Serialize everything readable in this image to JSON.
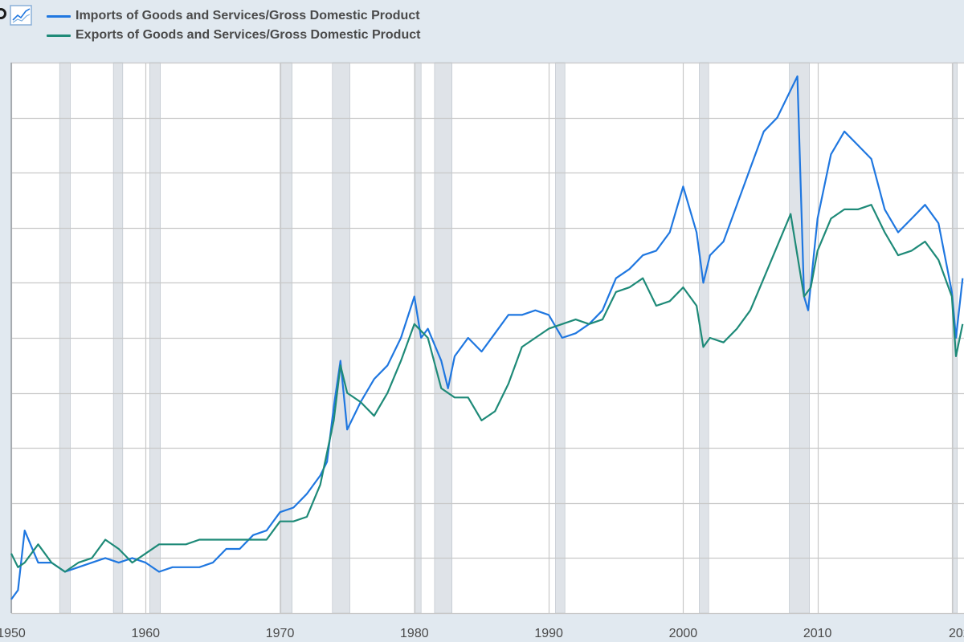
{
  "legend": {
    "items": [
      {
        "label": "Imports of Goods and Services/Gross Domestic Product",
        "color": "#1f77e0"
      },
      {
        "label": "Exports of Goods and Services/Gross Domestic Product",
        "color": "#1e8a78"
      }
    ]
  },
  "icons": {
    "logo": "fred-logo-icon",
    "chart": "line-chart-icon"
  },
  "colors": {
    "recession": "#dfe3e8",
    "grid": "#c8c8c8",
    "background": "#ffffff",
    "page": "#e1e9f0"
  },
  "chart_data": {
    "type": "line",
    "title": "",
    "xlabel": "",
    "ylabel": "",
    "xlim": [
      1949.85,
      1951.0
    ],
    "x_tick_labels": [
      "1950",
      "1960",
      "1970",
      "1980",
      "1990",
      "2000",
      "2010",
      "202"
    ],
    "grid": true,
    "legend_position": "top-left",
    "recessions": [
      [
        1953.6,
        1954.4
      ],
      [
        1957.6,
        1958.3
      ],
      [
        1960.3,
        1961.1
      ],
      [
        1970.0,
        1970.9
      ],
      [
        1973.9,
        1975.2
      ],
      [
        1980.0,
        1980.5
      ],
      [
        1981.5,
        1982.8
      ],
      [
        1990.5,
        1991.2
      ],
      [
        2001.2,
        2001.9
      ],
      [
        2007.9,
        2009.4
      ],
      [
        2020.1,
        2020.4
      ]
    ],
    "series": [
      {
        "name": "Imports of Goods and Services/Gross Domestic Product",
        "color": "#1f77e0",
        "points": [
          [
            1950.0,
            0.3
          ],
          [
            1950.5,
            0.5
          ],
          [
            1951.0,
            1.8
          ],
          [
            1952.0,
            1.1
          ],
          [
            1953.0,
            1.1
          ],
          [
            1954.0,
            0.9
          ],
          [
            1955.0,
            1.0
          ],
          [
            1956.0,
            1.1
          ],
          [
            1957.0,
            1.2
          ],
          [
            1958.0,
            1.1
          ],
          [
            1959.0,
            1.2
          ],
          [
            1960.0,
            1.1
          ],
          [
            1961.0,
            0.9
          ],
          [
            1962.0,
            1.0
          ],
          [
            1963.0,
            1.0
          ],
          [
            1964.0,
            1.0
          ],
          [
            1965.0,
            1.1
          ],
          [
            1966.0,
            1.4
          ],
          [
            1967.0,
            1.4
          ],
          [
            1968.0,
            1.7
          ],
          [
            1969.0,
            1.8
          ],
          [
            1970.0,
            2.2
          ],
          [
            1971.0,
            2.3
          ],
          [
            1972.0,
            2.6
          ],
          [
            1973.0,
            3.0
          ],
          [
            1973.5,
            3.3
          ],
          [
            1974.0,
            4.5
          ],
          [
            1974.5,
            5.5
          ],
          [
            1975.0,
            4.0
          ],
          [
            1976.0,
            4.6
          ],
          [
            1977.0,
            5.1
          ],
          [
            1978.0,
            5.4
          ],
          [
            1979.0,
            6.0
          ],
          [
            1980.0,
            6.9
          ],
          [
            1980.5,
            6.0
          ],
          [
            1981.0,
            6.2
          ],
          [
            1982.0,
            5.5
          ],
          [
            1982.5,
            4.9
          ],
          [
            1983.0,
            5.6
          ],
          [
            1984.0,
            6.0
          ],
          [
            1985.0,
            5.7
          ],
          [
            1986.0,
            6.1
          ],
          [
            1987.0,
            6.5
          ],
          [
            1988.0,
            6.5
          ],
          [
            1989.0,
            6.6
          ],
          [
            1990.0,
            6.5
          ],
          [
            1991.0,
            6.0
          ],
          [
            1992.0,
            6.1
          ],
          [
            1993.0,
            6.3
          ],
          [
            1994.0,
            6.6
          ],
          [
            1995.0,
            7.3
          ],
          [
            1996.0,
            7.5
          ],
          [
            1997.0,
            7.8
          ],
          [
            1998.0,
            7.9
          ],
          [
            1999.0,
            8.3
          ],
          [
            2000.0,
            9.3
          ],
          [
            2001.0,
            8.3
          ],
          [
            2001.5,
            7.2
          ],
          [
            2002.0,
            7.8
          ],
          [
            2003.0,
            8.1
          ],
          [
            2004.0,
            8.9
          ],
          [
            2005.0,
            9.7
          ],
          [
            2006.0,
            10.5
          ],
          [
            2007.0,
            10.8
          ],
          [
            2008.0,
            11.4
          ],
          [
            2008.5,
            11.7
          ],
          [
            2009.0,
            6.9
          ],
          [
            2009.3,
            6.6
          ],
          [
            2010.0,
            8.6
          ],
          [
            2011.0,
            10.0
          ],
          [
            2012.0,
            10.5
          ],
          [
            2013.0,
            10.2
          ],
          [
            2014.0,
            9.9
          ],
          [
            2015.0,
            8.8
          ],
          [
            2016.0,
            8.3
          ],
          [
            2017.0,
            8.6
          ],
          [
            2018.0,
            8.9
          ],
          [
            2019.0,
            8.5
          ],
          [
            2020.0,
            7.0
          ],
          [
            2020.3,
            6.0
          ],
          [
            2020.8,
            7.3
          ]
        ]
      },
      {
        "name": "Exports of Goods and Services/Gross Domestic Product",
        "color": "#1e8a78",
        "points": [
          [
            1950.0,
            1.3
          ],
          [
            1950.5,
            1.0
          ],
          [
            1951.0,
            1.1
          ],
          [
            1952.0,
            1.5
          ],
          [
            1953.0,
            1.1
          ],
          [
            1954.0,
            0.9
          ],
          [
            1955.0,
            1.1
          ],
          [
            1956.0,
            1.2
          ],
          [
            1957.0,
            1.6
          ],
          [
            1958.0,
            1.4
          ],
          [
            1959.0,
            1.1
          ],
          [
            1960.0,
            1.3
          ],
          [
            1961.0,
            1.5
          ],
          [
            1962.0,
            1.5
          ],
          [
            1963.0,
            1.5
          ],
          [
            1964.0,
            1.6
          ],
          [
            1965.0,
            1.6
          ],
          [
            1966.0,
            1.6
          ],
          [
            1967.0,
            1.6
          ],
          [
            1968.0,
            1.6
          ],
          [
            1969.0,
            1.6
          ],
          [
            1970.0,
            2.0
          ],
          [
            1971.0,
            2.0
          ],
          [
            1972.0,
            2.1
          ],
          [
            1973.0,
            2.8
          ],
          [
            1974.0,
            4.2
          ],
          [
            1974.5,
            5.4
          ],
          [
            1975.0,
            4.8
          ],
          [
            1976.0,
            4.6
          ],
          [
            1977.0,
            4.3
          ],
          [
            1978.0,
            4.8
          ],
          [
            1979.0,
            5.5
          ],
          [
            1980.0,
            6.3
          ],
          [
            1981.0,
            6.0
          ],
          [
            1982.0,
            4.9
          ],
          [
            1983.0,
            4.7
          ],
          [
            1984.0,
            4.7
          ],
          [
            1985.0,
            4.2
          ],
          [
            1986.0,
            4.4
          ],
          [
            1987.0,
            5.0
          ],
          [
            1988.0,
            5.8
          ],
          [
            1989.0,
            6.0
          ],
          [
            1990.0,
            6.2
          ],
          [
            1991.0,
            6.3
          ],
          [
            1992.0,
            6.4
          ],
          [
            1993.0,
            6.3
          ],
          [
            1994.0,
            6.4
          ],
          [
            1995.0,
            7.0
          ],
          [
            1996.0,
            7.1
          ],
          [
            1997.0,
            7.3
          ],
          [
            1998.0,
            6.7
          ],
          [
            1999.0,
            6.8
          ],
          [
            2000.0,
            7.1
          ],
          [
            2001.0,
            6.7
          ],
          [
            2001.5,
            5.8
          ],
          [
            2002.0,
            6.0
          ],
          [
            2003.0,
            5.9
          ],
          [
            2004.0,
            6.2
          ],
          [
            2005.0,
            6.6
          ],
          [
            2006.0,
            7.3
          ],
          [
            2007.0,
            8.0
          ],
          [
            2008.0,
            8.7
          ],
          [
            2009.0,
            6.9
          ],
          [
            2009.5,
            7.1
          ],
          [
            2010.0,
            7.9
          ],
          [
            2011.0,
            8.6
          ],
          [
            2012.0,
            8.8
          ],
          [
            2013.0,
            8.8
          ],
          [
            2014.0,
            8.9
          ],
          [
            2015.0,
            8.3
          ],
          [
            2016.0,
            7.8
          ],
          [
            2017.0,
            7.9
          ],
          [
            2018.0,
            8.1
          ],
          [
            2019.0,
            7.7
          ],
          [
            2020.0,
            6.9
          ],
          [
            2020.3,
            5.6
          ],
          [
            2020.8,
            6.3
          ]
        ]
      }
    ]
  }
}
